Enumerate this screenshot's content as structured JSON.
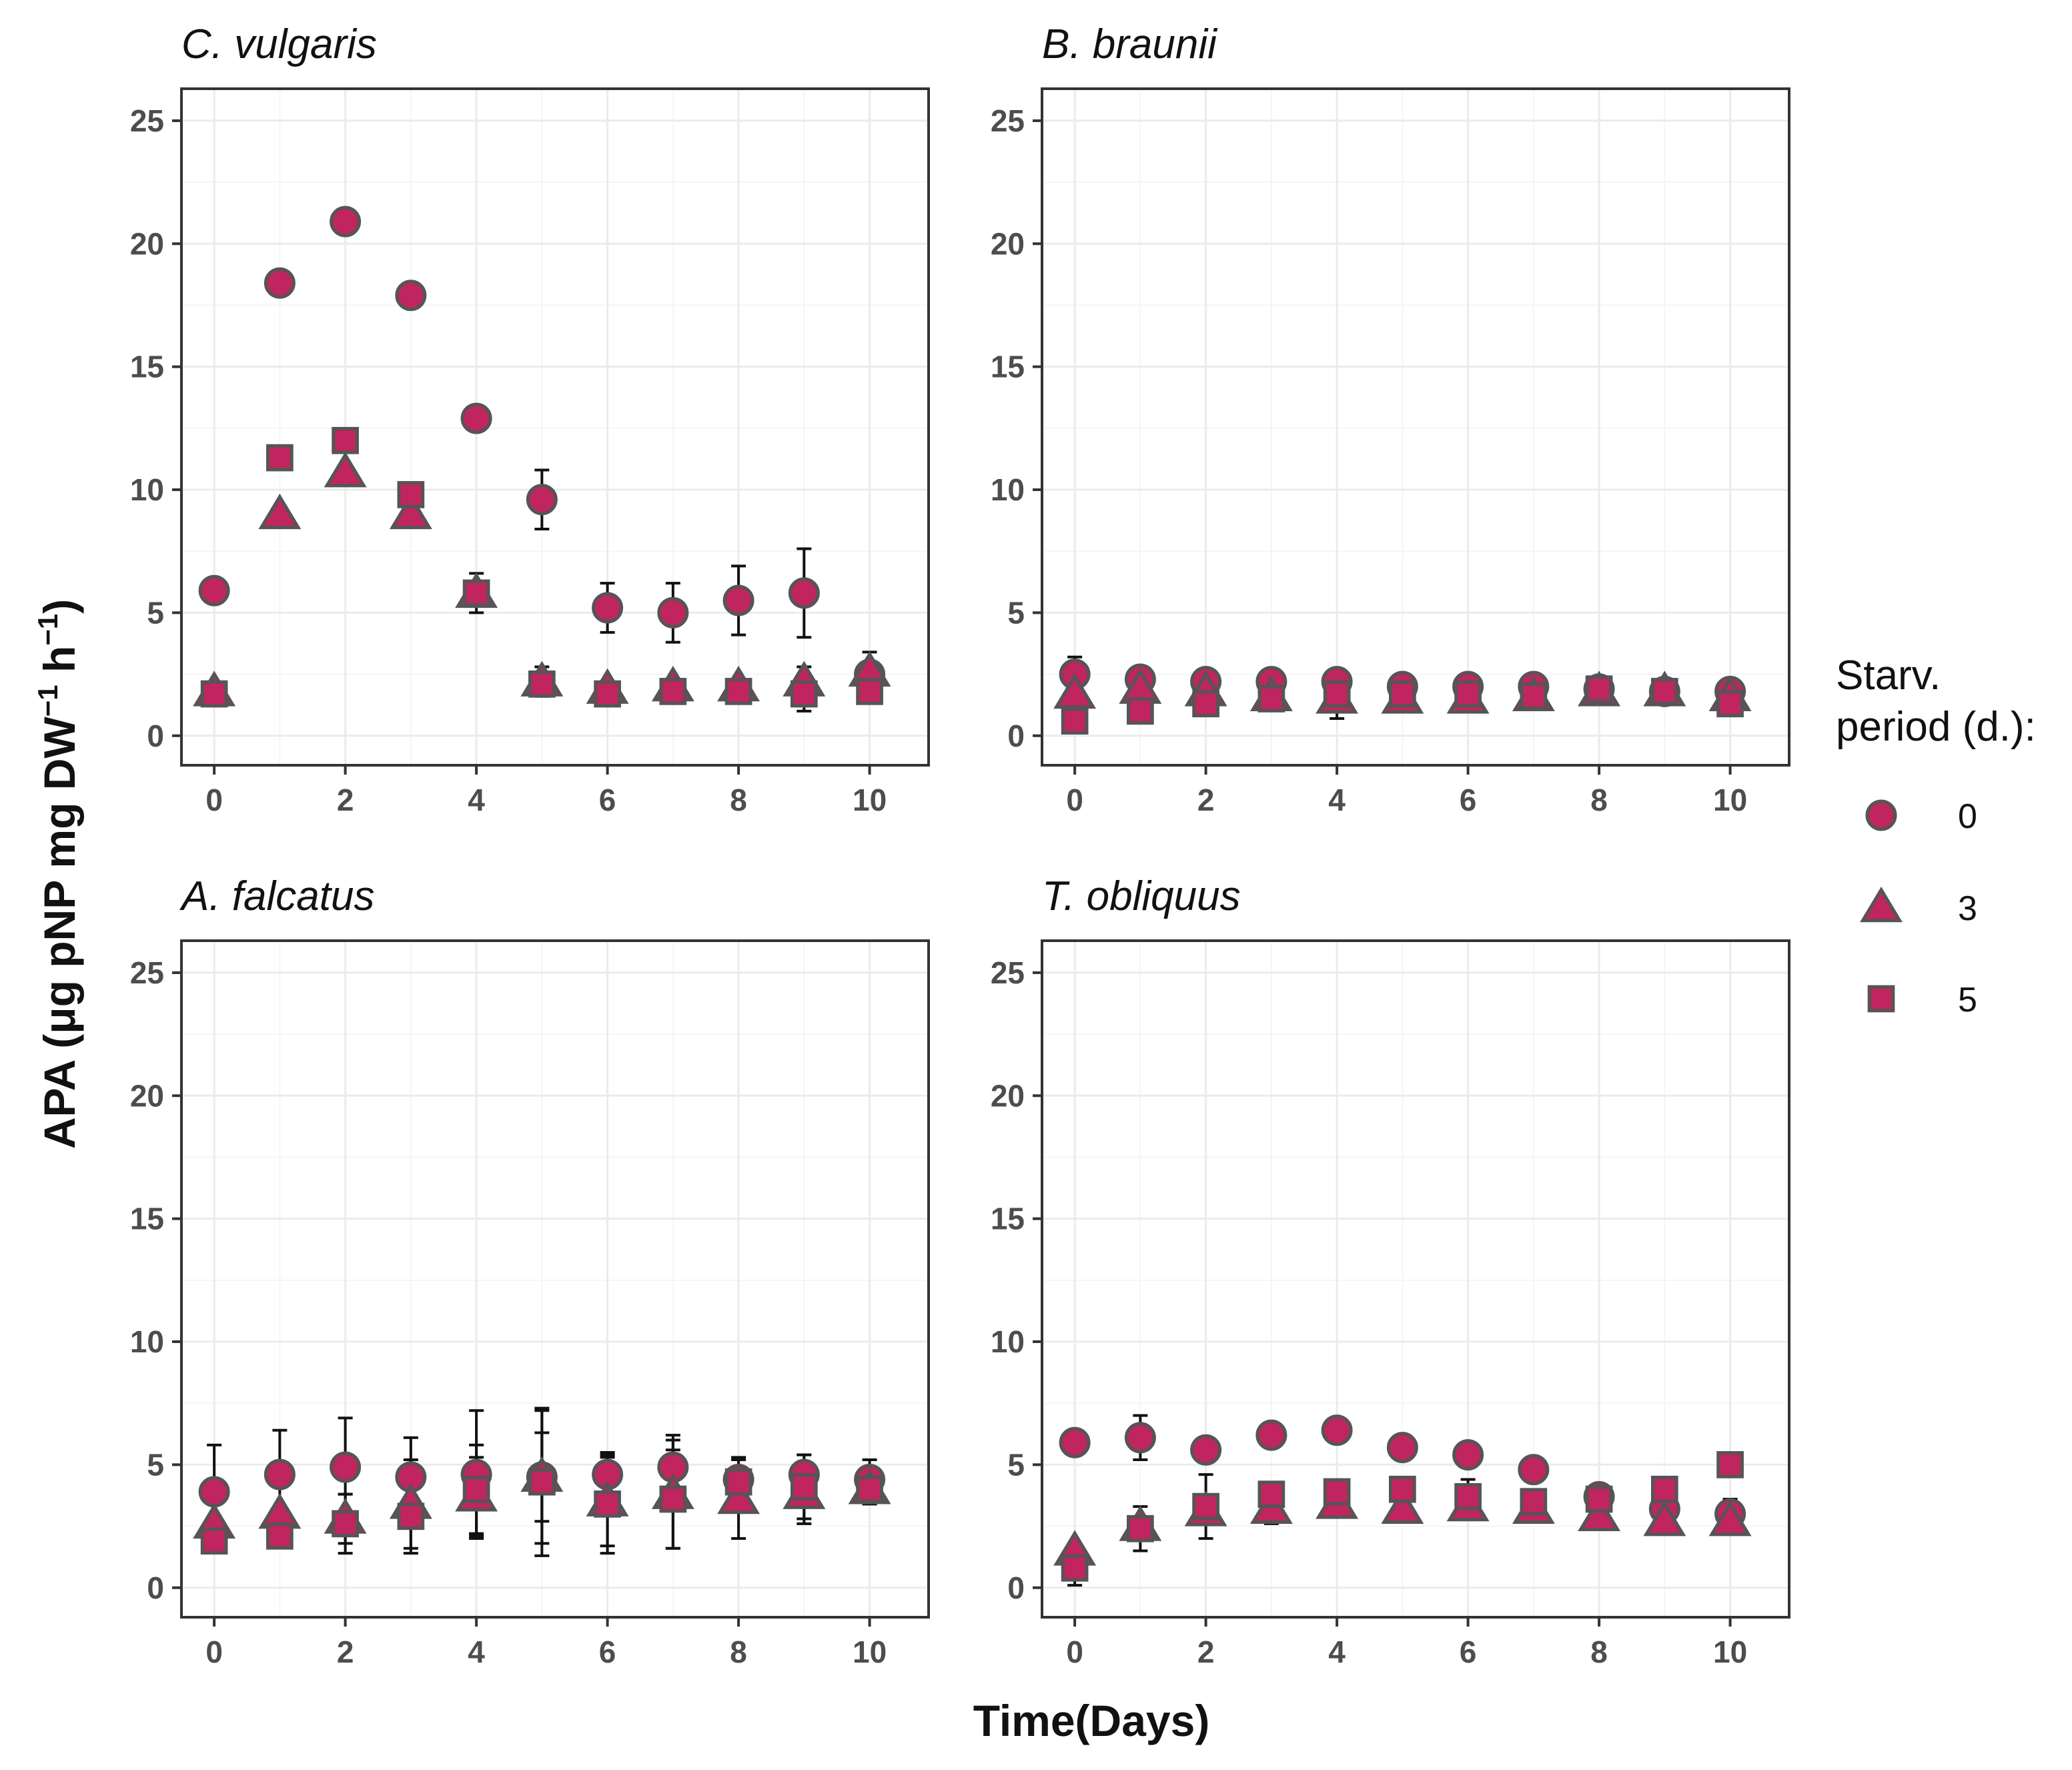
{
  "chart_data": {
    "type": "scatter",
    "xlabel": "Time(Days)",
    "ylabel": "APA",
    "ylabel_unit": "(μg pNP mg DW",
    "ylabel_sup1": "−1",
    "ylabel_mid": " h",
    "ylabel_sup2": "−1",
    "ylabel_end": ")",
    "xlim": [
      -0.5,
      10.9
    ],
    "ylim": [
      -1.2,
      26.3
    ],
    "xticks": [
      0,
      2,
      4,
      6,
      8,
      10
    ],
    "xtick_labels": [
      "0",
      "2",
      "4",
      "6",
      "8",
      "10"
    ],
    "yticks": [
      0,
      5,
      10,
      15,
      20,
      25
    ],
    "ytick_labels": [
      "0",
      "5",
      "10",
      "15",
      "20",
      "25"
    ],
    "grid": true,
    "colors": {
      "marker_fill": "#c0255f",
      "marker_stroke": "#555555",
      "errorbar": "#111111",
      "panel_border": "#333333",
      "grid_major": "#ebebeb",
      "grid_minor": "#f5f5f5"
    },
    "legend": {
      "title_line1": "Starv.",
      "title_line2": "period (d.):",
      "placement": "right",
      "entries": [
        {
          "label": "0",
          "shape": "circle"
        },
        {
          "label": "3",
          "shape": "triangle"
        },
        {
          "label": "5",
          "shape": "square"
        }
      ]
    },
    "x": [
      0,
      1,
      2,
      3,
      4,
      5,
      6,
      7,
      8,
      9,
      10
    ],
    "panels": [
      {
        "title": "C. vulgaris",
        "series": [
          {
            "name": "0",
            "shape": "circle",
            "values": [
              5.9,
              18.4,
              20.9,
              17.9,
              12.9,
              9.6,
              5.2,
              5.0,
              5.5,
              5.8,
              2.5
            ],
            "err": [
              0.2,
              0.2,
              0.2,
              0.2,
              0.2,
              1.2,
              1.0,
              1.2,
              1.4,
              1.8,
              0.9
            ]
          },
          {
            "name": "3",
            "shape": "triangle",
            "values": [
              1.8,
              9.0,
              10.7,
              9.0,
              5.8,
              2.2,
              1.9,
              2.0,
              2.0,
              2.2,
              2.6
            ],
            "err": [
              0.2,
              0.2,
              0.2,
              0.2,
              0.3,
              0.6,
              0.2,
              0.2,
              0.2,
              0.6,
              0.3
            ]
          },
          {
            "name": "5",
            "shape": "square",
            "values": [
              1.7,
              11.3,
              12.0,
              9.8,
              5.8,
              2.1,
              1.7,
              1.8,
              1.8,
              1.7,
              1.8
            ],
            "err": [
              0.2,
              0.2,
              0.2,
              0.2,
              0.8,
              0.3,
              0.2,
              0.2,
              0.2,
              0.7,
              0.3
            ]
          }
        ]
      },
      {
        "title": "B. braunii",
        "series": [
          {
            "name": "0",
            "shape": "circle",
            "values": [
              2.5,
              2.3,
              2.2,
              2.2,
              2.2,
              2.0,
              2.0,
              2.0,
              1.9,
              1.8,
              1.8
            ],
            "err": [
              0.7,
              0.2,
              0.2,
              0.2,
              0.2,
              0.2,
              0.2,
              0.2,
              0.2,
              0.2,
              0.2
            ]
          },
          {
            "name": "3",
            "shape": "triangle",
            "values": [
              1.7,
              1.9,
              1.8,
              1.6,
              1.5,
              1.5,
              1.5,
              1.6,
              1.8,
              1.8,
              1.6
            ],
            "err": [
              0.3,
              0.2,
              0.2,
              0.2,
              0.2,
              0.2,
              0.2,
              0.2,
              0.2,
              0.2,
              0.2
            ]
          },
          {
            "name": "5",
            "shape": "square",
            "values": [
              0.6,
              1.0,
              1.3,
              1.5,
              1.7,
              1.7,
              1.7,
              1.6,
              1.9,
              1.8,
              1.3
            ],
            "err": [
              0.2,
              0.2,
              0.2,
              0.2,
              1.0,
              0.2,
              0.2,
              0.5,
              0.2,
              0.2,
              0.2
            ]
          }
        ]
      },
      {
        "title": "A. falcatus",
        "series": [
          {
            "name": "0",
            "shape": "circle",
            "values": [
              3.9,
              4.6,
              4.9,
              4.5,
              4.6,
              4.5,
              4.6,
              4.9,
              4.4,
              4.6,
              4.4
            ],
            "err": [
              1.9,
              1.8,
              2.0,
              1.6,
              2.6,
              2.7,
              0.9,
              1.3,
              0.9,
              0.8,
              0.8
            ]
          },
          {
            "name": "3",
            "shape": "triangle",
            "values": [
              2.6,
              3.0,
              2.8,
              3.4,
              3.7,
              4.5,
              3.5,
              3.8,
              3.6,
              3.8,
              4.0
            ],
            "err": [
              0.2,
              0.3,
              1.0,
              1.8,
              1.6,
              1.8,
              1.8,
              2.2,
              1.6,
              1.2,
              0.6
            ]
          },
          {
            "name": "5",
            "shape": "square",
            "values": [
              1.9,
              2.1,
              2.6,
              2.9,
              4.0,
              4.3,
              3.4,
              3.6,
              4.3,
              4.1,
              4.0
            ],
            "err": [
              0.2,
              0.2,
              1.2,
              1.5,
              1.8,
              3.0,
              2.0,
              2.0,
              0.5,
              1.3,
              0.6
            ]
          }
        ]
      },
      {
        "title": "T. obliquus",
        "series": [
          {
            "name": "0",
            "shape": "circle",
            "values": [
              5.9,
              6.1,
              5.6,
              6.2,
              6.4,
              5.7,
              5.4,
              4.8,
              3.7,
              3.2,
              3.0
            ],
            "err": [
              0.2,
              0.9,
              0.2,
              0.2,
              0.2,
              0.2,
              0.2,
              0.2,
              0.2,
              0.2,
              0.6
            ]
          },
          {
            "name": "3",
            "shape": "triangle",
            "values": [
              1.5,
              2.5,
              3.1,
              3.2,
              3.4,
              3.2,
              3.3,
              3.2,
              2.9,
              2.7,
              2.7
            ],
            "err": [
              0.2,
              0.2,
              0.2,
              0.6,
              0.5,
              0.2,
              0.2,
              0.4,
              0.2,
              0.2,
              0.2
            ]
          },
          {
            "name": "5",
            "shape": "square",
            "values": [
              0.8,
              2.4,
              3.3,
              3.8,
              3.9,
              4.0,
              3.7,
              3.5,
              3.6,
              4.0,
              5.0
            ],
            "err": [
              0.7,
              0.9,
              1.3,
              0.3,
              0.4,
              0.2,
              0.7,
              0.3,
              0.2,
              0.4,
              0.4
            ]
          }
        ]
      }
    ]
  }
}
